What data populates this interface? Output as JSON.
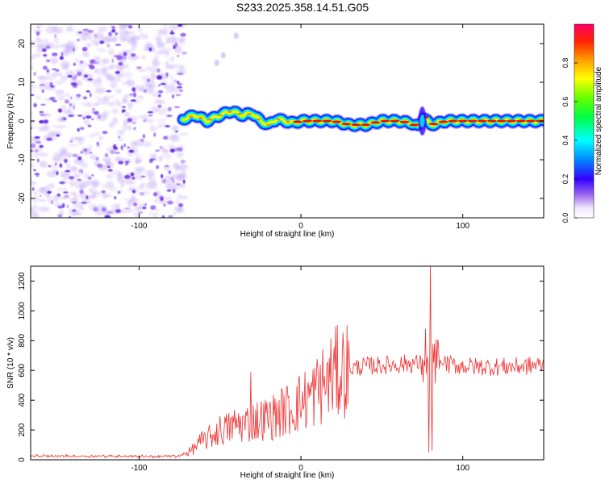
{
  "title": "S233.2025.358.14.51.G05",
  "chart_data": [
    {
      "type": "heatmap",
      "name": "spectrogram",
      "xlabel": "Height of straight line (km)",
      "ylabel": "Frequency (Hz)",
      "xlim": [
        -167,
        150
      ],
      "ylim": [
        -25,
        25
      ],
      "xticks": [
        -100,
        0,
        100
      ],
      "xtick_labels": [
        "-100",
        "0",
        "100"
      ],
      "yticks": [
        -20,
        -10,
        0,
        10,
        20
      ],
      "ytick_labels": [
        "-20",
        "-10",
        "0",
        "10",
        "20"
      ],
      "noise_region_x": [
        -167,
        -73
      ],
      "ridge": {
        "x": [
          -73,
          -65,
          -58,
          -50,
          -43,
          -36,
          -30,
          -25,
          -20,
          -15,
          -10,
          -5,
          0,
          10,
          20,
          30,
          40,
          50,
          60,
          68,
          72,
          76,
          80,
          90,
          100,
          110,
          120,
          130,
          140,
          150
        ],
        "freq": [
          0.5,
          1.5,
          0,
          1.5,
          2.5,
          1.5,
          2,
          0,
          -1,
          0.5,
          0,
          -0.5,
          0,
          0,
          0,
          -1,
          -1,
          0,
          0,
          -0.5,
          -1.5,
          1,
          -1,
          0,
          0,
          0,
          0,
          0,
          0,
          0
        ]
      },
      "colorbar": {
        "label": "Normalized spectral amplitude",
        "range": [
          0.0,
          1.0
        ],
        "ticks": [
          0.0,
          0.2,
          0.4,
          0.6,
          0.8
        ],
        "tick_labels": [
          "0.0",
          "0.2",
          "0.4",
          "0.6",
          "0.8"
        ]
      }
    },
    {
      "type": "line",
      "name": "snr",
      "xlabel": "Height of straight line (km)",
      "ylabel": "SNR (10 * v/v)",
      "xlim": [
        -167,
        150
      ],
      "ylim": [
        0,
        1300
      ],
      "xticks": [
        -100,
        0,
        100
      ],
      "xtick_labels": [
        "-100",
        "0",
        "100"
      ],
      "yticks": [
        0,
        200,
        400,
        600,
        800,
        1000,
        1200
      ],
      "ytick_labels": [
        "0",
        "200",
        "400",
        "600",
        "800",
        "1000",
        "1200"
      ],
      "color": "#ee3333",
      "series": [
        {
          "name": "SNR",
          "x": [
            -167,
            -140,
            -110,
            -90,
            -75,
            -68,
            -62,
            -55,
            -50,
            -45,
            -40,
            -35,
            -30,
            -25,
            -20,
            -15,
            -10,
            -5,
            0,
            5,
            10,
            15,
            20,
            25,
            30,
            40,
            50,
            60,
            70,
            75,
            78,
            80,
            82,
            85,
            90,
            100,
            110,
            120,
            130,
            140,
            150
          ],
          "values": [
            25,
            25,
            25,
            22,
            25,
            60,
            120,
            160,
            200,
            210,
            240,
            240,
            260,
            270,
            280,
            300,
            330,
            350,
            390,
            420,
            470,
            520,
            570,
            600,
            615,
            630,
            635,
            640,
            650,
            640,
            620,
            600,
            640,
            660,
            640,
            630,
            625,
            625,
            625,
            630,
            640
          ]
        }
      ],
      "spikes": [
        {
          "x": -31,
          "value": 590
        },
        {
          "x": 77,
          "value": 880
        },
        {
          "x": 79,
          "value": 50
        },
        {
          "x": 80,
          "value": 1300
        },
        {
          "x": 81,
          "value": 60
        }
      ]
    }
  ]
}
